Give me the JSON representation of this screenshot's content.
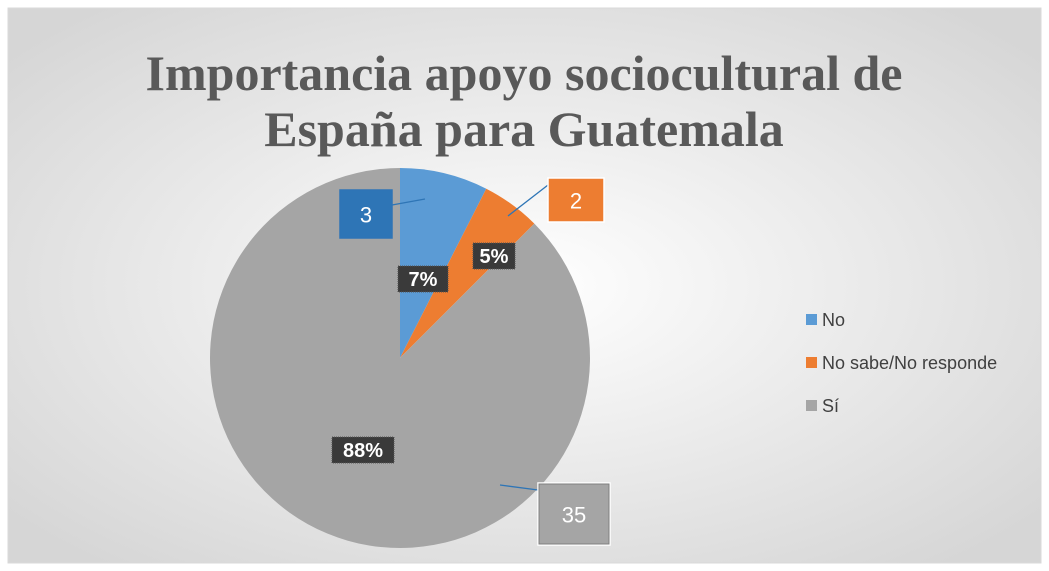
{
  "chart_data": {
    "type": "pie",
    "title": "Importancia apoyo sociocultural de España para Guatemala",
    "categories": [
      "No",
      "No sabe/No responde",
      "Sí"
    ],
    "values": [
      3,
      2,
      35
    ],
    "percent_labels": [
      "7%",
      "5%",
      "88%"
    ],
    "colors": [
      "#5b9bd5",
      "#ed7d31",
      "#a5a5a5"
    ],
    "label_box_colors": [
      "#2e75b6",
      "#ed7d31",
      "#a5a5a5"
    ],
    "legend": "right"
  }
}
